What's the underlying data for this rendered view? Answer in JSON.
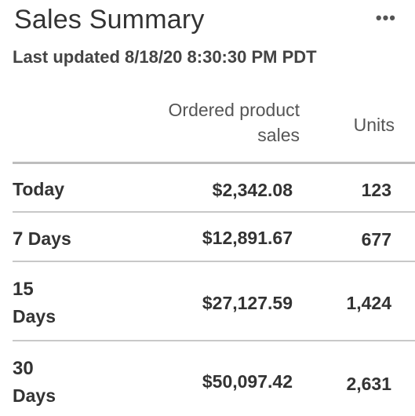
{
  "widget": {
    "title": "Sales Summary",
    "menu_label": "•••",
    "last_updated": "Last updated 8/18/20 8:30:30 PM PDT"
  },
  "table": {
    "headers": {
      "sales_line1": "Ordered product",
      "sales_line2": "sales",
      "units": "Units"
    },
    "rows": [
      {
        "period": "Today",
        "period_num": "",
        "period_unit": "",
        "sales": "$2,342.08",
        "units": "123"
      },
      {
        "period": "",
        "period_num": "7",
        "period_unit": "Days",
        "sales": "$12,891.67",
        "units": "677"
      },
      {
        "period": "",
        "period_num": "15",
        "period_unit": "Days",
        "sales": "$27,127.59",
        "units": "1,424"
      },
      {
        "period": "",
        "period_num": "30",
        "period_unit": "Days",
        "sales": "$50,097.42",
        "units": "2,631"
      }
    ]
  }
}
